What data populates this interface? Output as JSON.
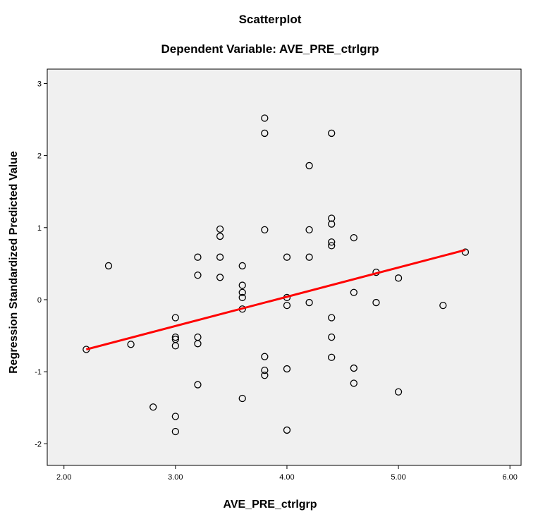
{
  "chart_data": {
    "type": "scatter",
    "title": "Scatterplot",
    "subtitle": "Dependent Variable: AVE_PRE_ctrlgrp",
    "xlabel": "AVE_PRE_ctrlgrp",
    "ylabel": "Regression Standardized Predicted Value",
    "xlim": [
      1.85,
      6.1
    ],
    "ylim": [
      -2.3,
      3.2
    ],
    "x_ticks": [
      2.0,
      3.0,
      4.0,
      5.0,
      6.0
    ],
    "x_tick_labels": [
      "2.00",
      "3.00",
      "4.00",
      "5.00",
      "6.00"
    ],
    "y_ticks": [
      -2,
      -1,
      0,
      1,
      2,
      3
    ],
    "y_tick_labels": [
      "-2",
      "-1",
      "0",
      "1",
      "2",
      "3"
    ],
    "grid": false,
    "plot_background": "#f0f0f0",
    "marker_color": "#000000",
    "fit_line_color": "#ff0000",
    "fit_line": {
      "x": [
        2.2,
        5.6
      ],
      "y": [
        -0.69,
        0.69
      ]
    },
    "series": [
      {
        "x": [
          2.2,
          2.4,
          2.6,
          2.8,
          3.0,
          3.0,
          3.0,
          3.0,
          3.0,
          3.0,
          3.2,
          3.2,
          3.2,
          3.2,
          3.2,
          3.4,
          3.4,
          3.4,
          3.4,
          3.6,
          3.6,
          3.6,
          3.6,
          3.6,
          3.6,
          3.8,
          3.8,
          3.8,
          3.8,
          3.8,
          3.8,
          4.0,
          4.0,
          4.0,
          4.0,
          4.0,
          4.2,
          4.2,
          4.2,
          4.2,
          4.4,
          4.4,
          4.4,
          4.4,
          4.4,
          4.4,
          4.4,
          4.4,
          4.6,
          4.6,
          4.6,
          4.6,
          4.8,
          4.8,
          5.0,
          5.0,
          5.4,
          5.6
        ],
        "y": [
          -0.69,
          0.47,
          -0.62,
          -1.49,
          -0.25,
          -0.52,
          -0.55,
          -0.64,
          -1.62,
          -1.83,
          0.59,
          0.34,
          -0.52,
          -0.61,
          -1.18,
          0.98,
          0.88,
          0.59,
          0.31,
          0.47,
          0.2,
          0.1,
          0.03,
          -0.13,
          -1.37,
          2.52,
          2.31,
          0.97,
          -0.79,
          -0.98,
          -1.05,
          0.59,
          0.03,
          -0.08,
          -0.96,
          -1.81,
          1.86,
          0.97,
          0.59,
          -0.04,
          2.31,
          1.13,
          1.05,
          0.8,
          0.75,
          -0.25,
          -0.52,
          -0.8,
          0.86,
          0.1,
          -0.95,
          -1.16,
          0.38,
          -0.04,
          0.3,
          -1.28,
          -0.08,
          0.66
        ]
      }
    ]
  }
}
